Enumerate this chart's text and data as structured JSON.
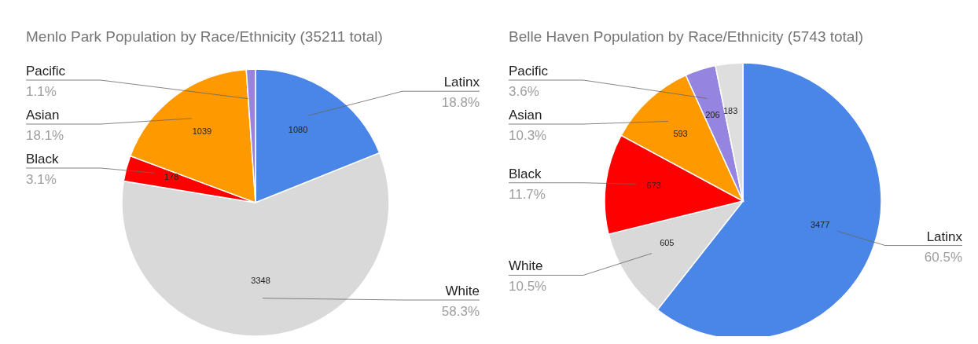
{
  "chart_data": [
    {
      "type": "pie",
      "title": "Menlo Park Population by Race/Ethnicity (35211 total)",
      "categories": [
        "Latinx",
        "White",
        "Black",
        "Asian",
        "Pacific"
      ],
      "values": [
        1080,
        3348,
        178,
        1039,
        63
      ],
      "colors": [
        "#4a86e8",
        "#d9d9d9",
        "#ff0000",
        "#ff9900",
        "#9585e0"
      ],
      "value_labels": [
        "1080",
        "3348",
        "178",
        "1039",
        null
      ],
      "annotations": [
        "18.8%",
        "58.3%",
        "3.1%",
        "18.1%",
        "1.1%"
      ]
    },
    {
      "type": "pie",
      "title": "Belle Haven Population by Race/Ethnicity (5743 total)",
      "categories": [
        "Latinx",
        "White",
        "Black",
        "Asian",
        "Pacific",
        null
      ],
      "values": [
        3477,
        605,
        673,
        593,
        206,
        183
      ],
      "colors": [
        "#4a86e8",
        "#d9d9d9",
        "#ff0000",
        "#ff9900",
        "#9585e0",
        "#dedede"
      ],
      "data_labels": true,
      "annotations": [
        "60.5%",
        "10.5%",
        "11.7%",
        "10.3%",
        "3.6%"
      ]
    }
  ]
}
